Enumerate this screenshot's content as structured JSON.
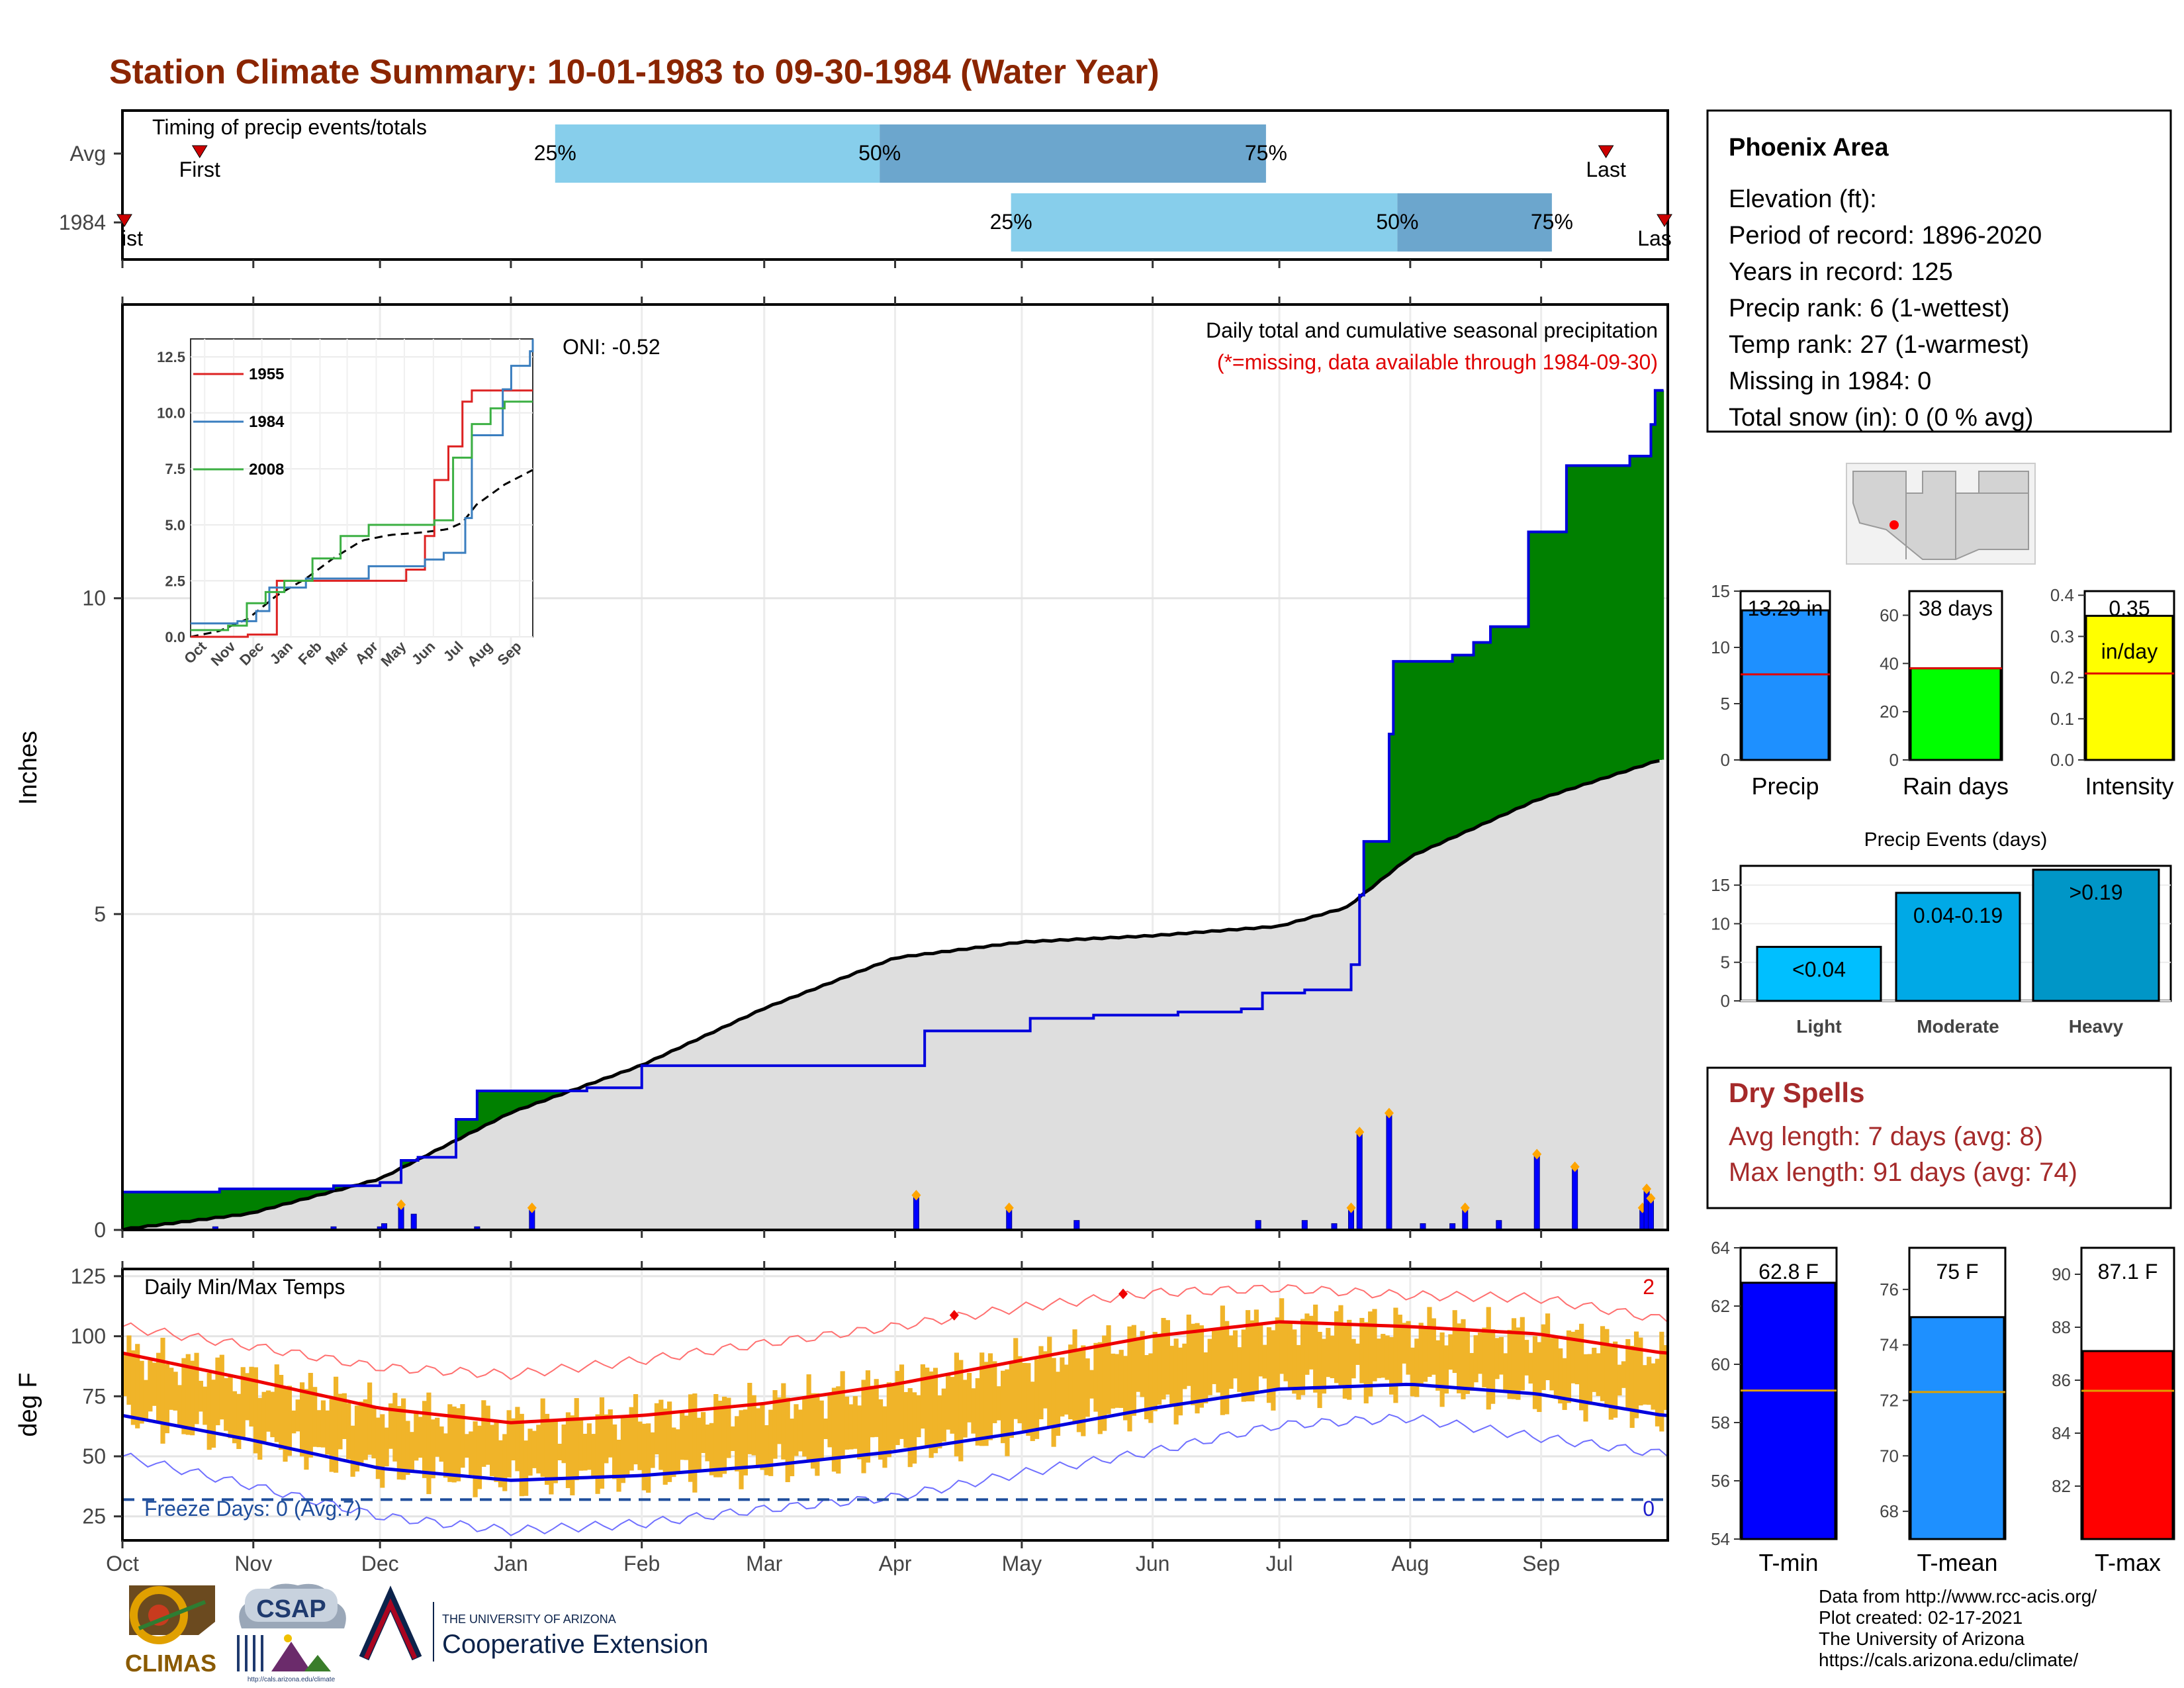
{
  "title": "Station Climate Summary: 10-01-1983 to 09-30-1984 (Water Year)",
  "month_labels": [
    "Oct",
    "Nov",
    "Dec",
    "Jan",
    "Feb",
    "Mar",
    "Apr",
    "May",
    "Jun",
    "Jul",
    "Aug",
    "Sep"
  ],
  "timing": {
    "title": "Timing of precip events/totals",
    "rows": [
      {
        "label": "Avg",
        "first_label": "First",
        "last_label": "Last",
        "p25": 0.28,
        "p50": 0.49,
        "p75": 0.74,
        "first": 0.05,
        "last": 0.96,
        "p25_label": "25%",
        "p50_label": "50%",
        "p75_label": "75%"
      },
      {
        "label": "1984",
        "first_label": "ist",
        "last_label": "Las",
        "p25": 0.575,
        "p50": 0.825,
        "p75": 0.925,
        "first": 0.0,
        "last": 1.0,
        "p25_label": "25%",
        "p50_label": "50%",
        "p75_label": "75%"
      }
    ],
    "colors": {
      "light": "#87ceeb",
      "dark": "#6ca6cd",
      "marker": "#cc0000"
    }
  },
  "precip_panel": {
    "ylabel": "Inches",
    "oni": "ONI: -0.52",
    "subtitle": "Daily total and cumulative seasonal precipitation",
    "missing_note": "(*=missing, data available through 1984-09-30)",
    "yticks": [
      0,
      5,
      10
    ]
  },
  "inset": {
    "yticks": [
      "0.0",
      "2.5",
      "5.0",
      "7.5",
      "10.0",
      "12.5"
    ],
    "months": [
      "Oct",
      "Nov",
      "Dec",
      "Jan",
      "Feb",
      "Mar",
      "Apr",
      "May",
      "Jun",
      "Jul",
      "Aug",
      "Sep"
    ],
    "legend": [
      {
        "name": "1955",
        "color": "#dd2222"
      },
      {
        "name": "1984",
        "color": "#3a7ebf"
      },
      {
        "name": "2008",
        "color": "#3cb043"
      }
    ]
  },
  "temp_panel": {
    "ylabel": "deg F",
    "title": "Daily Min/Max Temps",
    "freeze_label": "Freeze Days: 0 (Avg:7)",
    "count_top": "2",
    "count_bottom": "0",
    "yticks": [
      25,
      50,
      75,
      100,
      125
    ]
  },
  "station": {
    "name": "Phoenix Area",
    "lines": [
      "Elevation (ft):",
      "Period of record: 1896-2020",
      "Years in record: 125",
      "Precip rank: 6 (1-wettest)",
      "Temp rank: 27 (1-warmest)",
      "Missing in 1984: 0",
      "Total snow (in): 0 (0 % avg)"
    ]
  },
  "summary_bars": [
    {
      "xlabel": "Precip",
      "value_label": "13.29 in",
      "value": 13.29,
      "avg": 7.6,
      "ymax": 15,
      "ticks": [
        "0",
        "5",
        "10",
        "15"
      ],
      "tickvals": [
        0,
        5,
        10,
        15
      ],
      "color": "#1e90ff"
    },
    {
      "xlabel": "Rain days",
      "value_label": "38 days",
      "value": 38,
      "avg": 38,
      "ymax": 70,
      "ticks": [
        "0",
        "20",
        "40",
        "60"
      ],
      "tickvals": [
        0,
        20,
        40,
        60
      ],
      "color": "#00ff00"
    },
    {
      "xlabel": "Intensity",
      "value_label": "0.35",
      "value_label2": "in/day",
      "value": 0.35,
      "avg": 0.21,
      "ymax": 0.41,
      "ticks": [
        "0.0",
        "0.1",
        "0.2",
        "0.3",
        "0.4"
      ],
      "tickvals": [
        0,
        0.1,
        0.2,
        0.3,
        0.4
      ],
      "color": "#ffff00"
    }
  ],
  "events": {
    "title": "Precip Events (days)",
    "ticks": [
      "0",
      "5",
      "10",
      "15"
    ],
    "tickvals": [
      0,
      5,
      10,
      15
    ],
    "categories": [
      "Light",
      "Moderate",
      "Heavy"
    ],
    "bar_labels": [
      "<0.04",
      "0.04-0.19",
      ">0.19"
    ],
    "values": [
      7,
      14,
      17
    ],
    "colors": [
      "#00bfff",
      "#00a9e6",
      "#0096c7"
    ]
  },
  "dry_spells": {
    "title": "Dry Spells",
    "avg_line": "Avg length: 7 days (avg: 8)",
    "max_line": "Max length: 91 days (avg: 74)"
  },
  "temp_bars": [
    {
      "xlabel": "T-min",
      "value_label": "62.8 F",
      "value": 62.8,
      "avg": 59.1,
      "ymin": 54,
      "ymax": 64,
      "ticks": [
        "54",
        "56",
        "58",
        "60",
        "62",
        "64"
      ],
      "tickvals": [
        54,
        56,
        58,
        60,
        62,
        64
      ],
      "color": "#0000ff"
    },
    {
      "xlabel": "T-mean",
      "value_label": "75 F",
      "value": 75.0,
      "avg": 72.3,
      "ymin": 67,
      "ymax": 77.5,
      "ticks": [
        "68",
        "70",
        "72",
        "74",
        "76"
      ],
      "tickvals": [
        68,
        70,
        72,
        74,
        76
      ],
      "color": "#1e90ff"
    },
    {
      "xlabel": "T-max",
      "value_label": "87.1 F",
      "value": 87.1,
      "avg": 85.6,
      "ymin": 80,
      "ymax": 91,
      "ticks": [
        "82",
        "84",
        "86",
        "88",
        "90"
      ],
      "tickvals": [
        82,
        84,
        86,
        88,
        90
      ],
      "color": "#ff0000"
    }
  ],
  "footer": {
    "lines": [
      "Data from http://www.rcc-acis.org/",
      "Plot created: 02-17-2021",
      "The University of Arizona",
      "https://cals.arizona.edu/climate/"
    ],
    "logo_climas": "CLIMAS",
    "logo_csap": "CSAP",
    "logo_csap_url": "http://cals.arizona.edu/climate",
    "logo_ua_top": "THE UNIVERSITY OF ARIZONA",
    "logo_ua_bottom": "Cooperative Extension",
    "logo_ua_letter": "A"
  },
  "chart_data": {
    "type": "area",
    "title": "Station Climate Summary: 10-01-1983 to 09-30-1984 (Water Year)",
    "ylabel": "Inches",
    "ylim": [
      0,
      13.3
    ],
    "cumulative_1984_steps": [
      {
        "day": 0,
        "value": 0.6
      },
      {
        "day": 23,
        "value": 0.65
      },
      {
        "day": 50,
        "value": 0.7
      },
      {
        "day": 61,
        "value": 0.75
      },
      {
        "day": 66,
        "value": 1.1
      },
      {
        "day": 70,
        "value": 1.15
      },
      {
        "day": 79,
        "value": 1.75
      },
      {
        "day": 84,
        "value": 2.2
      },
      {
        "day": 110,
        "value": 2.25
      },
      {
        "day": 123,
        "value": 2.6
      },
      {
        "day": 177,
        "value": 2.6
      },
      {
        "day": 190,
        "value": 3.15
      },
      {
        "day": 215,
        "value": 3.35
      },
      {
        "day": 230,
        "value": 3.4
      },
      {
        "day": 250,
        "value": 3.45
      },
      {
        "day": 265,
        "value": 3.5
      },
      {
        "day": 270,
        "value": 3.75
      },
      {
        "day": 280,
        "value": 3.8
      },
      {
        "day": 291,
        "value": 4.2
      },
      {
        "day": 293,
        "value": 5.3
      },
      {
        "day": 294,
        "value": 6.15
      },
      {
        "day": 300,
        "value": 7.85
      },
      {
        "day": 301,
        "value": 9.0
      },
      {
        "day": 315,
        "value": 9.1
      },
      {
        "day": 320,
        "value": 9.3
      },
      {
        "day": 324,
        "value": 9.55
      },
      {
        "day": 333,
        "value": 11.05
      },
      {
        "day": 342,
        "value": 12.1
      },
      {
        "day": 357,
        "value": 12.25
      },
      {
        "day": 362,
        "value": 12.75
      },
      {
        "day": 363,
        "value": 13.29
      }
    ],
    "average_cumulative": [
      {
        "day": 0,
        "value": 0.0
      },
      {
        "day": 30,
        "value": 0.25
      },
      {
        "day": 61,
        "value": 0.8
      },
      {
        "day": 92,
        "value": 1.85
      },
      {
        "day": 123,
        "value": 2.6
      },
      {
        "day": 152,
        "value": 3.5
      },
      {
        "day": 183,
        "value": 4.3
      },
      {
        "day": 213,
        "value": 4.55
      },
      {
        "day": 244,
        "value": 4.65
      },
      {
        "day": 274,
        "value": 4.8
      },
      {
        "day": 290,
        "value": 5.1
      },
      {
        "day": 305,
        "value": 5.9
      },
      {
        "day": 335,
        "value": 6.8
      },
      {
        "day": 365,
        "value": 7.45
      }
    ],
    "daily_precip": [
      {
        "day": 22,
        "value": 0.05
      },
      {
        "day": 50,
        "value": 0.05
      },
      {
        "day": 61,
        "value": 0.05
      },
      {
        "day": 62,
        "value": 0.1
      },
      {
        "day": 66,
        "value": 0.4
      },
      {
        "day": 69,
        "value": 0.25
      },
      {
        "day": 84,
        "value": 0.05
      },
      {
        "day": 97,
        "value": 0.35
      },
      {
        "day": 188,
        "value": 0.55
      },
      {
        "day": 210,
        "value": 0.35
      },
      {
        "day": 226,
        "value": 0.15
      },
      {
        "day": 269,
        "value": 0.15
      },
      {
        "day": 280,
        "value": 0.15
      },
      {
        "day": 287,
        "value": 0.1
      },
      {
        "day": 291,
        "value": 0.35
      },
      {
        "day": 293,
        "value": 1.55
      },
      {
        "day": 300,
        "value": 1.85
      },
      {
        "day": 308,
        "value": 0.1
      },
      {
        "day": 315,
        "value": 0.1
      },
      {
        "day": 318,
        "value": 0.35
      },
      {
        "day": 326,
        "value": 0.15
      },
      {
        "day": 335,
        "value": 1.2
      },
      {
        "day": 344,
        "value": 1.0
      },
      {
        "day": 360,
        "value": 0.35
      },
      {
        "day": 361,
        "value": 0.65
      },
      {
        "day": 362,
        "value": 0.5
      }
    ],
    "inset_series": [
      {
        "name": "1955",
        "points": [
          [
            0,
            0
          ],
          [
            30,
            0
          ],
          [
            61,
            0.1
          ],
          [
            92,
            2.5
          ],
          [
            120,
            2.5
          ],
          [
            150,
            2.5
          ],
          [
            200,
            2.5
          ],
          [
            230,
            3.0
          ],
          [
            250,
            4.5
          ],
          [
            260,
            7.0
          ],
          [
            275,
            8.5
          ],
          [
            290,
            10.5
          ],
          [
            300,
            11.0
          ],
          [
            330,
            11.0
          ],
          [
            365,
            11.0
          ]
        ]
      },
      {
        "name": "1984",
        "points": [
          [
            0,
            0.6
          ],
          [
            50,
            0.7
          ],
          [
            70,
            1.15
          ],
          [
            84,
            2.2
          ],
          [
            123,
            2.6
          ],
          [
            190,
            3.15
          ],
          [
            250,
            3.45
          ],
          [
            270,
            3.75
          ],
          [
            293,
            5.3
          ],
          [
            300,
            9.0
          ],
          [
            333,
            11.05
          ],
          [
            342,
            12.1
          ],
          [
            362,
            12.75
          ],
          [
            365,
            13.29
          ]
        ]
      },
      {
        "name": "2008",
        "points": [
          [
            0,
            0.3
          ],
          [
            40,
            0.5
          ],
          [
            60,
            1.5
          ],
          [
            80,
            2.0
          ],
          [
            100,
            2.5
          ],
          [
            130,
            3.5
          ],
          [
            160,
            4.5
          ],
          [
            190,
            5.0
          ],
          [
            230,
            5.0
          ],
          [
            260,
            5.2
          ],
          [
            280,
            8.0
          ],
          [
            300,
            9.5
          ],
          [
            320,
            10.2
          ],
          [
            335,
            10.5
          ],
          [
            365,
            10.5
          ]
        ]
      }
    ],
    "temperature": {
      "ylim": [
        15,
        128
      ],
      "avg_max": [
        {
          "day": 0,
          "value": 93
        },
        {
          "day": 30,
          "value": 82
        },
        {
          "day": 61,
          "value": 70
        },
        {
          "day": 92,
          "value": 64
        },
        {
          "day": 123,
          "value": 67
        },
        {
          "day": 152,
          "value": 72
        },
        {
          "day": 183,
          "value": 80
        },
        {
          "day": 213,
          "value": 90
        },
        {
          "day": 244,
          "value": 100
        },
        {
          "day": 274,
          "value": 106
        },
        {
          "day": 305,
          "value": 104
        },
        {
          "day": 335,
          "value": 101
        },
        {
          "day": 365,
          "value": 93
        }
      ],
      "avg_min": [
        {
          "day": 0,
          "value": 67
        },
        {
          "day": 30,
          "value": 57
        },
        {
          "day": 61,
          "value": 45
        },
        {
          "day": 92,
          "value": 40
        },
        {
          "day": 123,
          "value": 42
        },
        {
          "day": 152,
          "value": 46
        },
        {
          "day": 183,
          "value": 52
        },
        {
          "day": 213,
          "value": 60
        },
        {
          "day": 244,
          "value": 70
        },
        {
          "day": 274,
          "value": 78
        },
        {
          "day": 305,
          "value": 80
        },
        {
          "day": 335,
          "value": 76
        },
        {
          "day": 365,
          "value": 67
        }
      ],
      "record_high": [
        {
          "day": 0,
          "value": 104
        },
        {
          "day": 30,
          "value": 96
        },
        {
          "day": 61,
          "value": 87
        },
        {
          "day": 92,
          "value": 84
        },
        {
          "day": 123,
          "value": 90
        },
        {
          "day": 152,
          "value": 97
        },
        {
          "day": 183,
          "value": 104
        },
        {
          "day": 213,
          "value": 112
        },
        {
          "day": 244,
          "value": 118
        },
        {
          "day": 274,
          "value": 120
        },
        {
          "day": 305,
          "value": 117
        },
        {
          "day": 335,
          "value": 116
        },
        {
          "day": 365,
          "value": 107
        }
      ],
      "record_low": [
        {
          "day": 0,
          "value": 50
        },
        {
          "day": 30,
          "value": 38
        },
        {
          "day": 61,
          "value": 25
        },
        {
          "day": 92,
          "value": 19
        },
        {
          "day": 123,
          "value": 22
        },
        {
          "day": 152,
          "value": 28
        },
        {
          "day": 183,
          "value": 33
        },
        {
          "day": 213,
          "value": 43
        },
        {
          "day": 244,
          "value": 52
        },
        {
          "day": 274,
          "value": 63
        },
        {
          "day": 305,
          "value": 66
        },
        {
          "day": 335,
          "value": 58
        },
        {
          "day": 365,
          "value": 51
        }
      ],
      "freeze_line": 32,
      "record_high_days": [
        197,
        237
      ]
    }
  }
}
